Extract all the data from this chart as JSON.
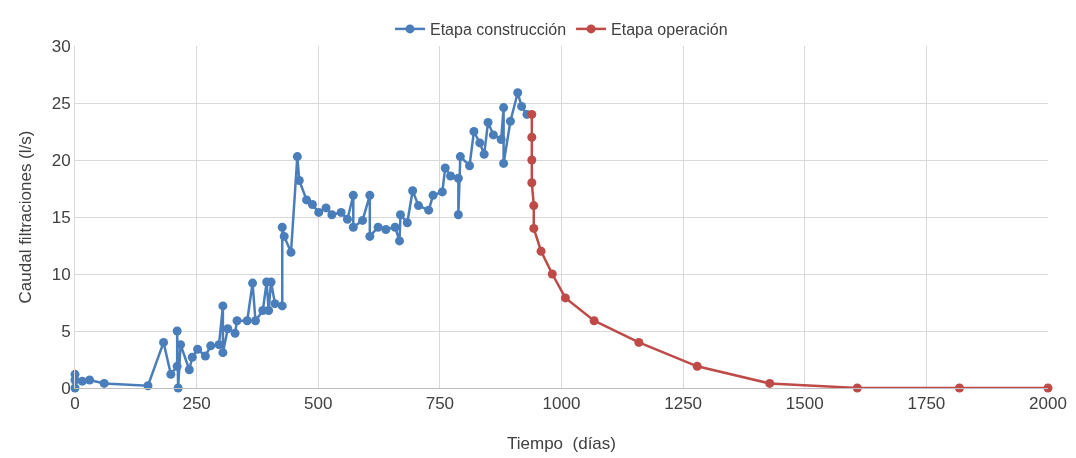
{
  "chart_data": {
    "type": "line",
    "xlabel": "Tiempo  (días)",
    "ylabel": "Caudal filtraciones (l/s)",
    "xlim": [
      0,
      2000
    ],
    "xticks": [
      0,
      250,
      500,
      750,
      1000,
      1250,
      1500,
      1750,
      2000
    ],
    "ylim": [
      0,
      30
    ],
    "yticks": [
      0,
      5,
      10,
      15,
      20,
      25,
      30
    ],
    "grid": true,
    "legend": "top",
    "marker": "circle",
    "line_style": "solid",
    "series": [
      {
        "name": "Etapa construcción",
        "color": "#4a7ebb",
        "x": [
          0,
          0,
          0,
          15,
          30,
          60,
          150,
          182,
          197,
          210,
          210,
          212,
          217,
          235,
          241,
          252,
          268,
          279,
          296,
          304,
          304,
          314,
          329,
          333,
          354,
          365,
          371,
          386,
          394,
          398,
          403,
          411,
          426,
          426,
          430,
          444,
          457,
          461,
          476,
          488,
          501,
          516,
          528,
          547,
          560,
          572,
          572,
          591,
          606,
          606,
          623,
          639,
          658,
          667,
          669,
          683,
          694,
          706,
          727,
          736,
          755,
          761,
          772,
          788,
          788,
          792,
          811,
          820,
          832,
          841,
          849,
          860,
          876,
          881,
          881,
          895,
          910,
          918,
          929
        ],
        "values": [
          1.2,
          0,
          0.7,
          0.6,
          0.7,
          0.4,
          0.2,
          4,
          1.2,
          1.9,
          5,
          0,
          3.8,
          1.6,
          2.7,
          3.4,
          2.8,
          3.7,
          3.8,
          7.2,
          3.1,
          5.2,
          4.8,
          5.9,
          5.9,
          9.2,
          5.9,
          6.8,
          9.3,
          6.8,
          9.3,
          7.4,
          7.2,
          14.1,
          13.3,
          11.9,
          20.3,
          18.2,
          16.5,
          16.1,
          15.4,
          15.8,
          15.2,
          15.4,
          14.8,
          16.9,
          14.1,
          14.7,
          16.9,
          13.3,
          14.1,
          13.9,
          14.1,
          12.9,
          15.2,
          14.5,
          17.3,
          16,
          15.6,
          16.9,
          17.2,
          19.3,
          18.6,
          18.4,
          15.2,
          20.3,
          19.5,
          22.5,
          21.5,
          20.5,
          23.3,
          22.2,
          21.8,
          24.6,
          19.7,
          23.4,
          25.9,
          24.7,
          24
        ]
      },
      {
        "name": "Etapa operación",
        "color": "#be4b48",
        "x": [
          939,
          939,
          939,
          939,
          943,
          943,
          958,
          981,
          1008,
          1067,
          1159,
          1279,
          1428,
          1608,
          1818,
          2000
        ],
        "values": [
          24,
          22,
          20,
          18,
          16,
          14,
          12,
          10,
          7.9,
          5.9,
          4,
          1.9,
          0.4,
          0,
          0,
          0
        ]
      }
    ]
  }
}
